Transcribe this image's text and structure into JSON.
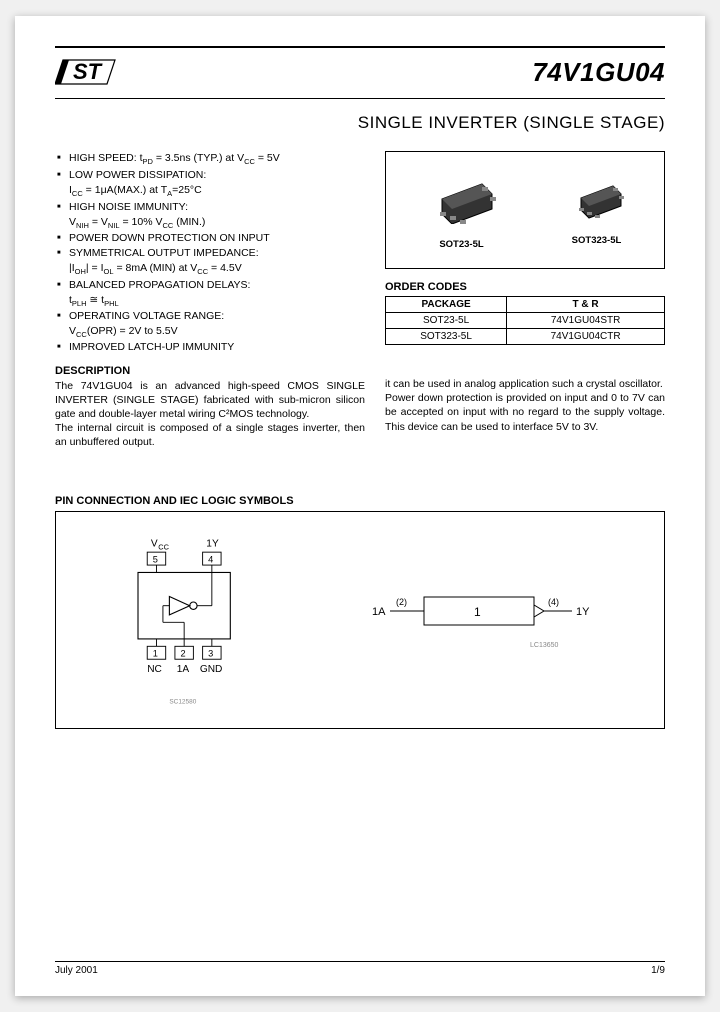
{
  "header": {
    "part_number": "74V1GU04",
    "title": "SINGLE INVERTER (SINGLE STAGE)"
  },
  "features": [
    {
      "main": "HIGH SPEED: t<sub>PD</sub> = 3.5ns (TYP.) at V<sub>CC</sub> = 5V"
    },
    {
      "main": "LOW POWER DISSIPATION:",
      "sub": "I<sub>CC</sub> = 1μA(MAX.) at T<sub>A</sub>=25°C"
    },
    {
      "main": "HIGH NOISE IMMUNITY:",
      "sub": "V<sub>NIH</sub> = V<sub>NIL</sub> = 10% V<sub>CC</sub> (MIN.)"
    },
    {
      "main": "POWER DOWN PROTECTION ON INPUT"
    },
    {
      "main": "SYMMETRICAL OUTPUT IMPEDANCE:",
      "sub": "|I<sub>OH</sub>| = I<sub>OL</sub> = 8mA (MIN) at V<sub>CC</sub> = 4.5V"
    },
    {
      "main": "BALANCED PROPAGATION DELAYS:",
      "sub": "t<sub>PLH</sub> ≅ t<sub>PHL</sub>"
    },
    {
      "main": "OPERATING VOLTAGE RANGE:",
      "sub": "V<sub>CC</sub>(OPR) = 2V to 5.5V"
    },
    {
      "main": "IMPROVED LATCH-UP IMMUNITY"
    }
  ],
  "description": {
    "heading": "DESCRIPTION",
    "left": "The 74V1GU04 is an advanced high-speed CMOS SINGLE INVERTER (SINGLE STAGE) fabricated with sub-micron silicon gate and double-layer metal wiring C²MOS technology.<br>The internal circuit is composed of a single stages inverter, then an unbuffered output.",
    "right": "it can be used in analog application such a crystal oscillator.<br>Power down protection is provided on input and 0 to 7V can be accepted on input with no regard to the supply voltage. This device can be used to interface 5V to 3V."
  },
  "packages": {
    "box_labels": [
      "SOT23-5L",
      "SOT323-5L"
    ],
    "order_heading": "ORDER CODES",
    "table": {
      "headers": [
        "PACKAGE",
        "T & R"
      ],
      "rows": [
        [
          "SOT23-5L",
          "74V1GU04STR"
        ],
        [
          "SOT323-5L",
          "74V1GU04CTR"
        ]
      ]
    }
  },
  "pin_section": {
    "heading": "PIN CONNECTION AND IEC LOGIC SYMBOLS",
    "left_labels": {
      "vcc": "V",
      "vcc_sub": "CC",
      "1y_top": "1Y",
      "p5": "5",
      "p4": "4",
      "p1": "1",
      "p2": "2",
      "p3": "3",
      "nc": "NC",
      "1a": "1A",
      "gnd": "GND"
    },
    "right_labels": {
      "1a": "1A",
      "pin2": "(2)",
      "one": "1",
      "pin4": "(4)",
      "1y": "1Y"
    },
    "code_left": "SC12580",
    "code_right": "LC13650"
  },
  "footer": {
    "date": "July 2001",
    "page": "1/9"
  },
  "colors": {
    "text": "#000000",
    "bg": "#ffffff",
    "page_bg": "#f0f0f0"
  }
}
